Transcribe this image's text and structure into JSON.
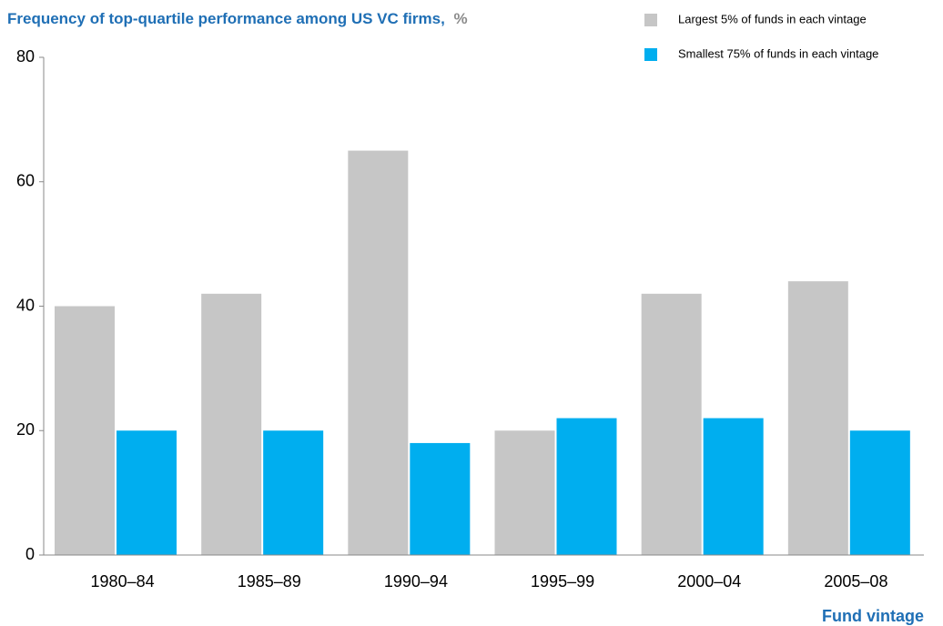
{
  "chart_data": {
    "type": "bar",
    "title": "Frequency of top-quartile performance among US VC firms,",
    "title_unit": "%",
    "x_label": "Fund vintage",
    "categories": [
      "1980–84",
      "1985–89",
      "1990–94",
      "1995–99",
      "2000–04",
      "2005–08"
    ],
    "series": [
      {
        "name": "Largest 5% of funds in each vintage",
        "color": "#c6c6c6",
        "values": [
          40,
          42,
          65,
          20,
          42,
          44
        ]
      },
      {
        "name": "Smallest 75% of funds in each vintage",
        "color": "#00aeef",
        "values": [
          20,
          20,
          18,
          22,
          22,
          20
        ]
      }
    ],
    "ylim": [
      0,
      80
    ],
    "yticks": [
      0,
      20,
      40,
      60,
      80
    ],
    "legend": "top-right",
    "grid": false
  }
}
